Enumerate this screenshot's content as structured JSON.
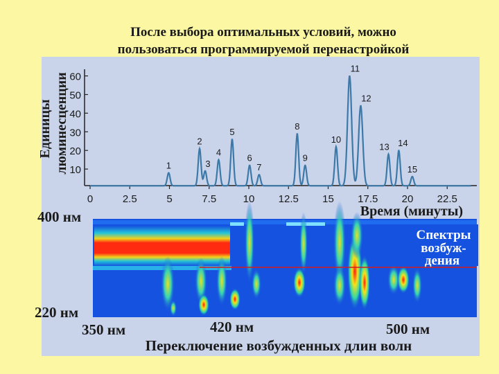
{
  "slide": {
    "title_line1": "После выбора оптимальных условий, можно",
    "title_line2": "пользоваться программируемой перенастройкой",
    "bg_color": "#fbf7a3",
    "panel_color": "#c9d4ea"
  },
  "chart_data": [
    {
      "type": "line",
      "ylabel_line1": "Единицы",
      "ylabel_line2": "люминесценции",
      "xlabel": "Время (минуты)",
      "xlim": [
        0,
        24
      ],
      "ylim": [
        0,
        64
      ],
      "x_ticks": [
        "0",
        "2.5",
        "5",
        "7.5",
        "10",
        "12.5",
        "15",
        "17.5",
        "20",
        "22.5"
      ],
      "y_ticks": [
        "10",
        "20",
        "30",
        "40",
        "50",
        "60"
      ],
      "grid": false,
      "line_color": "#3c79a8",
      "baseline": 1,
      "peaks": [
        {
          "label": "1",
          "x": 4.95,
          "height": 7
        },
        {
          "label": "2",
          "x": 6.9,
          "height": 20
        },
        {
          "label": "3",
          "x": 7.25,
          "height": 8
        },
        {
          "label": "4",
          "x": 8.1,
          "height": 14
        },
        {
          "label": "5",
          "x": 8.95,
          "height": 25
        },
        {
          "label": "6",
          "x": 10.05,
          "height": 11
        },
        {
          "label": "7",
          "x": 10.65,
          "height": 6
        },
        {
          "label": "8",
          "x": 13.05,
          "height": 28
        },
        {
          "label": "9",
          "x": 13.55,
          "height": 11
        },
        {
          "label": "10",
          "x": 15.5,
          "height": 21
        },
        {
          "label": "11",
          "x": 16.35,
          "height": 59
        },
        {
          "label": "12",
          "x": 17.05,
          "height": 43
        },
        {
          "label": "13",
          "x": 18.8,
          "height": 17
        },
        {
          "label": "14",
          "x": 19.45,
          "height": 19
        },
        {
          "label": "15",
          "x": 20.3,
          "height": 5
        }
      ]
    },
    {
      "type": "heatmap",
      "top_label": "400 нм",
      "bottom_label": "220 нм",
      "legend_line1": "Спектры",
      "legend_line2": "возбуж-",
      "legend_line3": "дения",
      "x_labels": [
        "350 нм",
        "420 нм",
        "500 нм"
      ],
      "xlabel": "Переключение возбужденных длин волн",
      "background_color": "#1552e0",
      "legend_color": "#ffffff",
      "reference_line_color": "#d81c1c"
    }
  ]
}
